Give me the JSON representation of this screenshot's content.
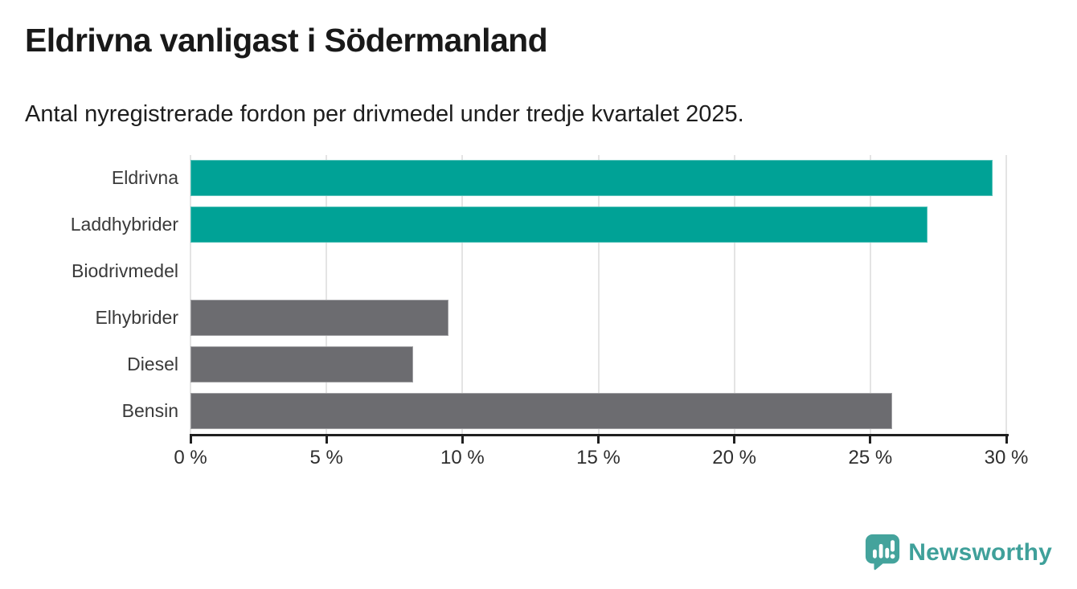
{
  "chart_data": {
    "type": "bar",
    "orientation": "horizontal",
    "title": "Eldrivna vanligast i Södermanland",
    "subtitle": "Antal nyregistrerade fordon per drivmedel under tredje kvartalet 2025.",
    "categories": [
      "Eldrivna",
      "Laddhybrider",
      "Biodrivmedel",
      "Elhybrider",
      "Diesel",
      "Bensin"
    ],
    "values": [
      29.5,
      27.1,
      0,
      9.5,
      8.2,
      25.8
    ],
    "unit": "%",
    "bar_colors": [
      "#00a296",
      "#00a296",
      "#6c6c70",
      "#6c6c70",
      "#6c6c70",
      "#6c6c70"
    ],
    "highlight_color": "#00a296",
    "default_color": "#6c6c70",
    "xlabel": "",
    "ylabel": "",
    "xlim": [
      0,
      30
    ],
    "x_ticks": {
      "values": [
        0,
        5,
        10,
        15,
        20,
        25,
        30
      ],
      "labels": [
        "0 %",
        "5 %",
        "10 %",
        "15 %",
        "20 %",
        "25 %",
        "30 %"
      ]
    },
    "grid": "vertical-only",
    "gridline_color": "#e4e4e4",
    "legend": "none"
  },
  "branding": {
    "logo_text": "Newsworthy",
    "logo_color": "#3fa09a",
    "icon": "newsworthy-pin-barchart-icon"
  }
}
